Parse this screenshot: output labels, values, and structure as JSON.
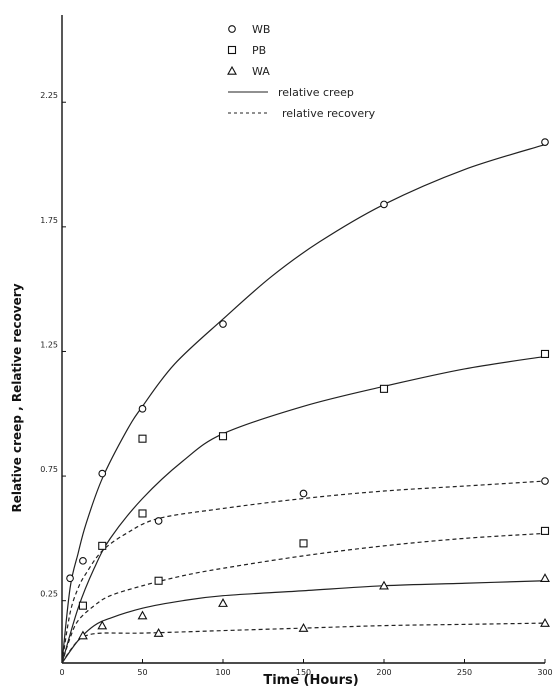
{
  "chart_data": {
    "type": "scatter",
    "xlabel": "Time (Hours)",
    "ylabel": "Relative creep , Relative recovery",
    "xlim": [
      0,
      300
    ],
    "ylim": [
      0,
      2.6
    ],
    "x_ticks": [
      "0",
      "50",
      "100",
      "150",
      "200",
      "250",
      "300"
    ],
    "y_ticks": [
      "0.25",
      "0.75",
      "1.25",
      "1.75",
      "2.25"
    ],
    "series": [
      {
        "name": "WB",
        "marker": "circle",
        "kind": "creep",
        "x": [
          5,
          13,
          25,
          50,
          100,
          200,
          300
        ],
        "y": [
          0.34,
          0.41,
          0.76,
          1.02,
          1.36,
          1.84,
          2.09
        ]
      },
      {
        "name": "PB",
        "marker": "square",
        "kind": "creep",
        "x": [
          13,
          25,
          50,
          100,
          200,
          300
        ],
        "y": [
          0.23,
          0.47,
          0.9,
          0.91,
          1.1,
          1.24
        ]
      },
      {
        "name": "WA",
        "marker": "triangle",
        "kind": "creep",
        "x": [
          50,
          100,
          200,
          300
        ],
        "y": [
          0.19,
          0.24,
          0.31,
          0.34
        ]
      },
      {
        "name": "WB",
        "marker": "circle",
        "kind": "recovery",
        "x": [
          60,
          150,
          300
        ],
        "y": [
          0.57,
          0.68,
          0.73
        ]
      },
      {
        "name": "PB",
        "marker": "square",
        "kind": "recovery",
        "x": [
          50,
          60,
          150,
          300
        ],
        "y": [
          0.6,
          0.33,
          0.48,
          0.53
        ]
      },
      {
        "name": "WA",
        "marker": "triangle",
        "kind": "recovery",
        "x": [
          13,
          25,
          60,
          150,
          300
        ],
        "y": [
          0.11,
          0.15,
          0.12,
          0.14,
          0.16
        ]
      }
    ],
    "curves": [
      {
        "style": "solid",
        "x": [
          0,
          5,
          10,
          15,
          25,
          40,
          50,
          70,
          100,
          130,
          160,
          200,
          250,
          300
        ],
        "y": [
          0,
          0.3,
          0.44,
          0.56,
          0.74,
          0.93,
          1.03,
          1.2,
          1.38,
          1.55,
          1.69,
          1.84,
          1.98,
          2.08
        ]
      },
      {
        "style": "solid",
        "x": [
          0,
          10,
          20,
          30,
          50,
          75,
          100,
          150,
          200,
          250,
          300
        ],
        "y": [
          0,
          0.22,
          0.38,
          0.5,
          0.66,
          0.81,
          0.92,
          1.03,
          1.11,
          1.18,
          1.23
        ]
      },
      {
        "style": "solid",
        "x": [
          0,
          10,
          20,
          30,
          50,
          75,
          100,
          150,
          200,
          250,
          300
        ],
        "y": [
          0,
          0.09,
          0.15,
          0.18,
          0.22,
          0.25,
          0.27,
          0.29,
          0.31,
          0.32,
          0.33
        ]
      },
      {
        "style": "dashed",
        "x": [
          0,
          5,
          10,
          15,
          25,
          40,
          60,
          100,
          150,
          200,
          250,
          300
        ],
        "y": [
          0,
          0.2,
          0.3,
          0.36,
          0.45,
          0.52,
          0.58,
          0.62,
          0.66,
          0.69,
          0.71,
          0.73
        ]
      },
      {
        "style": "dashed",
        "x": [
          0,
          5,
          10,
          20,
          30,
          50,
          75,
          100,
          150,
          200,
          250,
          300
        ],
        "y": [
          0,
          0.1,
          0.17,
          0.23,
          0.27,
          0.31,
          0.35,
          0.38,
          0.43,
          0.47,
          0.5,
          0.52
        ]
      },
      {
        "style": "dashed",
        "x": [
          0,
          5,
          10,
          15,
          25,
          50,
          100,
          150,
          200,
          250,
          300
        ],
        "y": [
          0,
          0.05,
          0.09,
          0.11,
          0.12,
          0.12,
          0.13,
          0.14,
          0.15,
          0.155,
          0.16
        ]
      }
    ],
    "legend": {
      "position": "top-center",
      "entries": [
        {
          "label": "WB",
          "marker": "circle"
        },
        {
          "label": "PB",
          "marker": "square"
        },
        {
          "label": "WA",
          "marker": "triangle"
        },
        {
          "label": "relative creep",
          "line": "solid"
        },
        {
          "label": "relative recovery",
          "line": "dashed"
        }
      ]
    },
    "grid": false
  }
}
